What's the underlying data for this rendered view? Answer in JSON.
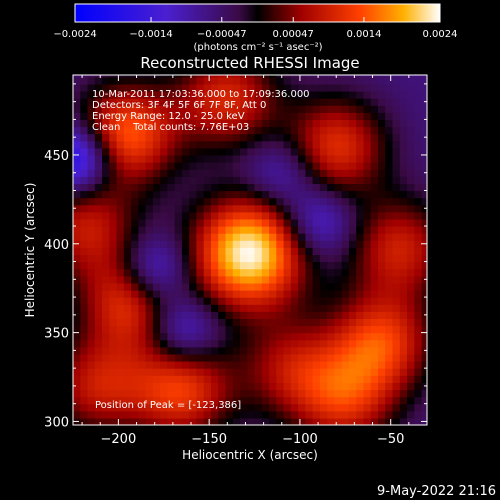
{
  "chart_data": {
    "type": "heatmap",
    "title": "Reconstructed RHESSI Image",
    "xlabel": "Heliocentric X (arcsec)",
    "ylabel": "Heliocentric Y (arcsec)",
    "xlim": [
      -225,
      -30
    ],
    "ylim": [
      298,
      495
    ],
    "x_ticks": [
      -200,
      -150,
      -100,
      -50
    ],
    "y_ticks": [
      300,
      350,
      400,
      450
    ],
    "x_tick_labels": [
      "−200",
      "−150",
      "−100",
      "−50"
    ],
    "y_tick_labels": [
      "300",
      "350",
      "400",
      "450"
    ],
    "colorbar": {
      "range": [
        -0.0024,
        0.0024
      ],
      "ticks": [
        -0.0024,
        -0.0014,
        -0.00047,
        0.00047,
        0.0014,
        0.0024
      ],
      "tick_labels": [
        "−0.0024",
        "−0.0014",
        "−0.00047",
        "0.00047",
        "0.0014",
        "0.0024"
      ],
      "unit_label": "(photons cm⁻² s⁻¹ asec⁻²)"
    },
    "annotations": [
      "10-Mar-2011 17:03:36.000 to 17:09:36.000",
      "Detectors: 3F 4F 5F 6F 7F 8F, Att 0",
      "Energy Range: 12.0 - 25.0 keV",
      "Clean    Total counts: 7.76E+03"
    ],
    "peak_label": "Position of Peak = [-123,386]",
    "sources": [
      {
        "x": -128,
        "y": 395,
        "peak": 0.0024
      },
      {
        "x": -196,
        "y": 462,
        "peak": 0.0015
      },
      {
        "x": -192,
        "y": 368,
        "peak": 0.0012
      },
      {
        "x": -165,
        "y": 318,
        "peak": 0.0012
      },
      {
        "x": -55,
        "y": 345,
        "peak": 0.0012
      },
      {
        "x": -45,
        "y": 398,
        "peak": 0.0009
      },
      {
        "x": -80,
        "y": 455,
        "peak": 0.0011
      },
      {
        "x": -140,
        "y": 482,
        "peak": 0.001
      },
      {
        "x": -75,
        "y": 312,
        "peak": 0.0009
      },
      {
        "x": -218,
        "y": 410,
        "peak": 0.0008
      },
      {
        "x": -105,
        "y": 330,
        "peak": 0.0006
      },
      {
        "x": -212,
        "y": 320,
        "peak": 0.0008
      }
    ],
    "troughs": [
      {
        "x": -222,
        "y": 448,
        "depth": -0.0024
      },
      {
        "x": -180,
        "y": 385,
        "depth": -0.002
      },
      {
        "x": -165,
        "y": 352,
        "depth": -0.0018
      },
      {
        "x": -90,
        "y": 412,
        "depth": -0.0016
      },
      {
        "x": -110,
        "y": 440,
        "depth": -0.0014
      }
    ]
  },
  "footer_date": "9-May-2022 21:16"
}
